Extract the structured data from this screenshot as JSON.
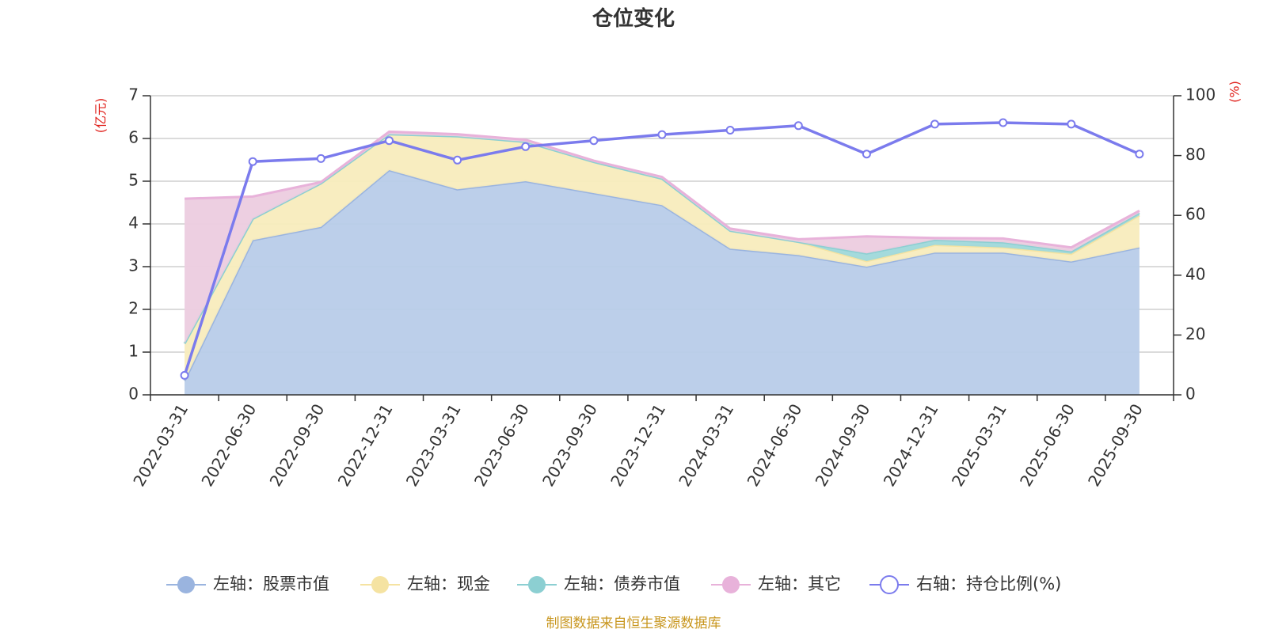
{
  "chart_data": {
    "type": "area",
    "title": "仓位变化",
    "source_note": "制图数据来自恒生聚源数据库",
    "categories": [
      "2022-03-31",
      "2022-06-30",
      "2022-09-30",
      "2022-12-31",
      "2023-03-31",
      "2023-06-30",
      "2023-09-30",
      "2023-12-31",
      "2024-03-31",
      "2024-06-30",
      "2024-09-30",
      "2024-12-31",
      "2025-03-31",
      "2025-06-30",
      "2025-09-30"
    ],
    "left_axis": {
      "unit": "(亿元)",
      "ylim": [
        0,
        7
      ],
      "ticks": [
        "0",
        "1",
        "2",
        "3",
        "4",
        "5",
        "6",
        "7"
      ]
    },
    "right_axis": {
      "unit": "(%)",
      "ylim": [
        0,
        100
      ],
      "ticks": [
        "0",
        "20",
        "40",
        "60",
        "80",
        "100"
      ]
    },
    "series": [
      {
        "name": "左轴：股票市值",
        "axis": "left",
        "stacked": true,
        "color": "#9ab4df",
        "fill": "#b8cce9",
        "values": [
          0.33,
          3.62,
          3.93,
          5.26,
          4.81,
          5.0,
          4.72,
          4.44,
          3.42,
          3.27,
          3.0,
          3.33,
          3.33,
          3.12,
          3.45
        ]
      },
      {
        "name": "左轴：现金",
        "axis": "left",
        "stacked": true,
        "color": "#f5e3a2",
        "fill": "#f8ecbd",
        "values": [
          0.87,
          0.5,
          1.02,
          0.84,
          1.24,
          0.92,
          0.73,
          0.62,
          0.42,
          0.31,
          0.13,
          0.18,
          0.12,
          0.18,
          0.75
        ]
      },
      {
        "name": "左轴：债券市值",
        "axis": "left",
        "stacked": true,
        "color": "#8ccfd2",
        "fill": "#9fd8da",
        "values": [
          0,
          0,
          0,
          0,
          0,
          0,
          0,
          0,
          0,
          0,
          0.18,
          0.12,
          0.12,
          0.06,
          0.06
        ]
      },
      {
        "name": "左轴：其它",
        "axis": "left",
        "stacked": true,
        "color": "#e8b2da",
        "fill": "#ecccdf",
        "values": [
          3.39,
          0.52,
          0.03,
          0.06,
          0.05,
          0.05,
          0.03,
          0.04,
          0.05,
          0.06,
          0.4,
          0.04,
          0.09,
          0.09,
          0.05
        ]
      },
      {
        "name": "右轴：持仓比例(%)",
        "axis": "right",
        "type": "line",
        "color": "#7b7bed",
        "values": [
          6.5,
          78.0,
          79.0,
          85.0,
          78.5,
          83.0,
          85.0,
          87.0,
          88.5,
          90.0,
          80.5,
          90.5,
          91.0,
          90.5,
          80.5
        ]
      }
    ],
    "legend_position": "bottom-center"
  }
}
